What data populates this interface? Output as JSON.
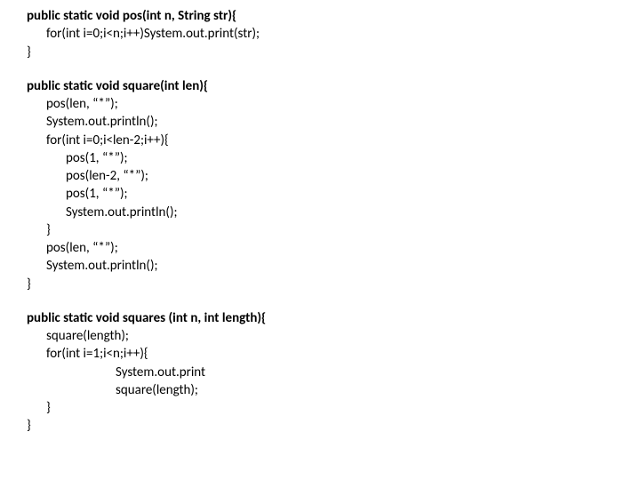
{
  "code": {
    "font_family": "Calibri",
    "font_size_pt": 11,
    "color": "#000000",
    "background": "#ffffff",
    "lines": [
      {
        "indent": 0,
        "bold": true,
        "text": "public static void pos(int n, String str){"
      },
      {
        "indent": 1,
        "bold": false,
        "text": "for(int i=0;i<n;i++)System.out.print(str);"
      },
      {
        "indent": 0,
        "bold": false,
        "text": "}"
      },
      {
        "blank": true
      },
      {
        "indent": 0,
        "bold": true,
        "text": "public static void square(int len){"
      },
      {
        "indent": 1,
        "bold": false,
        "text": "pos(len, “*”);"
      },
      {
        "indent": 1,
        "bold": false,
        "text": "System.out.println();"
      },
      {
        "indent": 1,
        "bold": false,
        "text": "for(int i=0;i<len-2;i++){"
      },
      {
        "indent": 2,
        "bold": false,
        "text": "pos(1, “*”);"
      },
      {
        "indent": 2,
        "bold": false,
        "text": "pos(len-2, “*”);"
      },
      {
        "indent": 2,
        "bold": false,
        "text": "pos(1, “*”);"
      },
      {
        "indent": 2,
        "bold": false,
        "text": "System.out.println();"
      },
      {
        "indent": 1,
        "bold": false,
        "text": "}"
      },
      {
        "indent": 1,
        "bold": false,
        "text": "pos(len, “*”);"
      },
      {
        "indent": 1,
        "bold": false,
        "text": "System.out.println();"
      },
      {
        "indent": 0,
        "bold": false,
        "text": "}"
      },
      {
        "blank": true
      },
      {
        "indent": 0,
        "bold": true,
        "text": "public static void squares (int n, int length){"
      },
      {
        "indent": 1,
        "bold": false,
        "text": "square(length);"
      },
      {
        "indent": 1,
        "bold": false,
        "text": "for(int i=1;i<n;i++){"
      },
      {
        "indent": 4,
        "bold": false,
        "text": "System.out.print"
      },
      {
        "indent": 4,
        "bold": false,
        "text": "square(length);"
      },
      {
        "indent": 1,
        "bold": false,
        "text": "}"
      },
      {
        "indent": 0,
        "bold": false,
        "text": "}"
      }
    ]
  }
}
